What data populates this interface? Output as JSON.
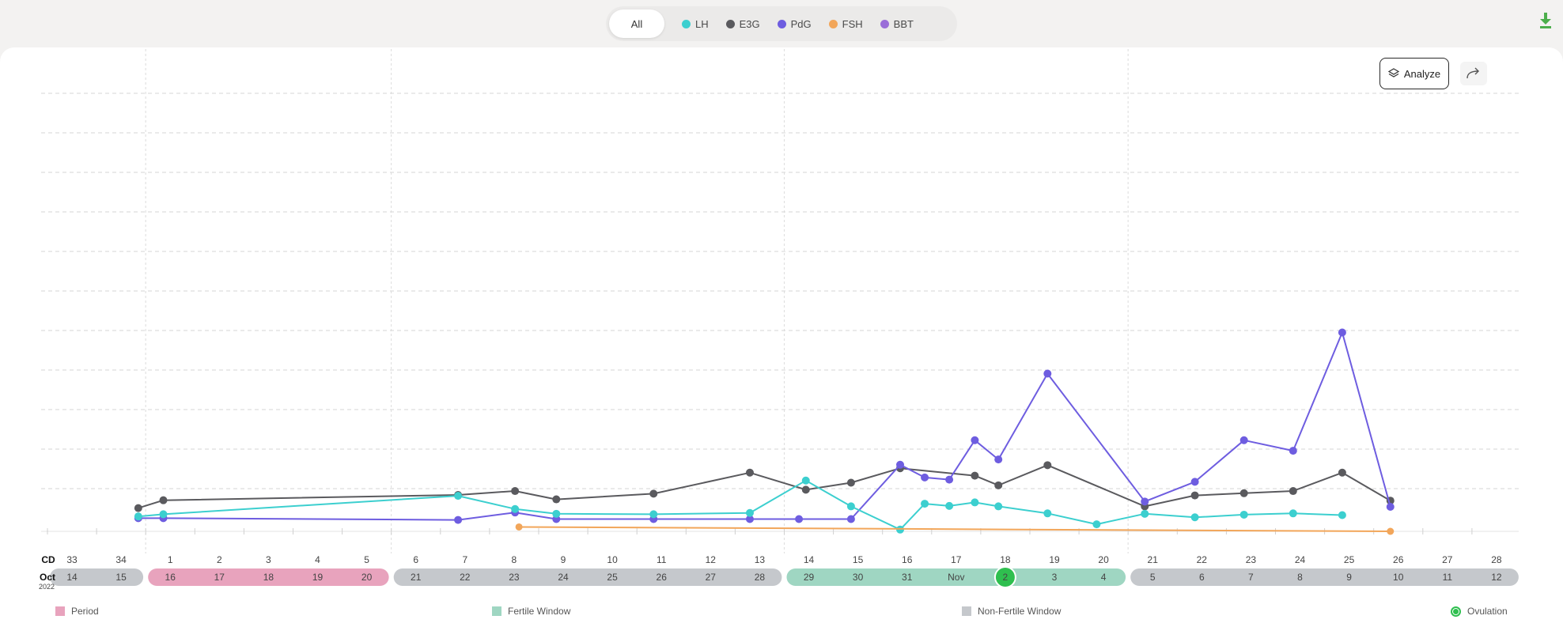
{
  "filters": {
    "all_label": "All",
    "items": [
      {
        "label": "LH",
        "color": "#3ccfcf"
      },
      {
        "label": "E3G",
        "color": "#5a5a5e"
      },
      {
        "label": "PdG",
        "color": "#6e5de0"
      },
      {
        "label": "FSH",
        "color": "#f2a65a"
      },
      {
        "label": "BBT",
        "color": "#9a6ed8"
      }
    ]
  },
  "toolbar": {
    "analyze_label": "Analyze"
  },
  "legend": {
    "period": {
      "label": "Period",
      "color": "#e8a3bd"
    },
    "fertile": {
      "label": "Fertile Window",
      "color": "#9fd6c2"
    },
    "nonfertile": {
      "label": "Non-Fertile Window",
      "color": "#c5c8cc"
    },
    "ovulation": {
      "label": "Ovulation",
      "color": "#2fbf4f"
    }
  },
  "chart_data": {
    "type": "line",
    "title": "",
    "xlabel": "",
    "ylabel": "",
    "ylim": [
      0,
      100
    ],
    "grid": true,
    "axis_rows": {
      "cd_label": "CD",
      "month_label": "Oct",
      "year_label": "2022"
    },
    "cd": [
      "33",
      "34",
      "1",
      "2",
      "3",
      "4",
      "5",
      "6",
      "7",
      "8",
      "9",
      "10",
      "11",
      "12",
      "13",
      "14",
      "15",
      "16",
      "17",
      "18",
      "19",
      "20",
      "21",
      "22",
      "23",
      "24",
      "25",
      "26",
      "27",
      "28"
    ],
    "dates": [
      "14",
      "15",
      "16",
      "17",
      "18",
      "19",
      "20",
      "21",
      "22",
      "23",
      "24",
      "25",
      "26",
      "27",
      "28",
      "29",
      "30",
      "31",
      "Nov",
      "2",
      "3",
      "4",
      "5",
      "6",
      "7",
      "8",
      "9",
      "10",
      "11",
      "12"
    ],
    "segments": [
      {
        "phase": "nonfertile",
        "from": 0,
        "to": 1
      },
      {
        "phase": "period",
        "from": 2,
        "to": 6
      },
      {
        "phase": "nonfertile",
        "from": 7,
        "to": 14
      },
      {
        "phase": "fertile",
        "from": 15,
        "to": 21
      },
      {
        "phase": "nonfertile",
        "from": 22,
        "to": 29
      }
    ],
    "ovulation_index": 19,
    "series": [
      {
        "name": "E3G",
        "color": "#5a5a5e",
        "points": [
          [
            1.35,
            5.3
          ],
          [
            1.86,
            7.1
          ],
          [
            7.86,
            8.3
          ],
          [
            9.02,
            9.2
          ],
          [
            9.86,
            7.3
          ],
          [
            11.84,
            8.6
          ],
          [
            13.8,
            13.4
          ],
          [
            14.94,
            9.5
          ],
          [
            15.86,
            11.1
          ],
          [
            16.86,
            14.4
          ],
          [
            18.38,
            12.7
          ],
          [
            18.86,
            10.5
          ],
          [
            19.86,
            15.1
          ],
          [
            21.84,
            5.7
          ],
          [
            22.86,
            8.2
          ],
          [
            23.86,
            8.7
          ],
          [
            24.86,
            9.2
          ],
          [
            25.86,
            13.4
          ],
          [
            26.84,
            7.0
          ]
        ]
      },
      {
        "name": "PdG",
        "color": "#6e5de0",
        "points": [
          [
            1.35,
            3.0
          ],
          [
            1.86,
            3.0
          ],
          [
            7.86,
            2.6
          ],
          [
            9.02,
            4.3
          ],
          [
            9.86,
            2.8
          ],
          [
            11.84,
            2.8
          ],
          [
            13.8,
            2.8
          ],
          [
            14.8,
            2.8
          ],
          [
            15.86,
            2.8
          ],
          [
            16.86,
            15.2
          ],
          [
            17.36,
            12.3
          ],
          [
            17.86,
            11.8
          ],
          [
            18.38,
            20.8
          ],
          [
            18.86,
            16.4
          ],
          [
            19.86,
            36.0
          ],
          [
            21.84,
            6.8
          ],
          [
            22.86,
            11.3
          ],
          [
            23.86,
            20.8
          ],
          [
            24.86,
            18.4
          ],
          [
            25.86,
            45.4
          ],
          [
            26.84,
            5.6
          ]
        ]
      },
      {
        "name": "LH",
        "color": "#3ccfcf",
        "points": [
          [
            1.35,
            3.4
          ],
          [
            1.86,
            3.9
          ],
          [
            7.86,
            8.1
          ],
          [
            9.02,
            5.1
          ],
          [
            9.86,
            4.0
          ],
          [
            11.84,
            3.9
          ],
          [
            13.8,
            4.2
          ],
          [
            14.94,
            11.6
          ],
          [
            15.86,
            5.7
          ],
          [
            16.86,
            0.4
          ],
          [
            17.36,
            6.3
          ],
          [
            17.86,
            5.8
          ],
          [
            18.38,
            6.6
          ],
          [
            18.86,
            5.7
          ],
          [
            19.86,
            4.1
          ],
          [
            20.86,
            1.6
          ],
          [
            21.84,
            4.0
          ],
          [
            22.86,
            3.2
          ],
          [
            23.86,
            3.8
          ],
          [
            24.86,
            4.1
          ],
          [
            25.86,
            3.7
          ]
        ]
      },
      {
        "name": "FSH",
        "color": "#f2a65a",
        "points": [
          [
            9.1,
            1.0
          ],
          [
            26.84,
            0.0
          ]
        ]
      }
    ]
  }
}
